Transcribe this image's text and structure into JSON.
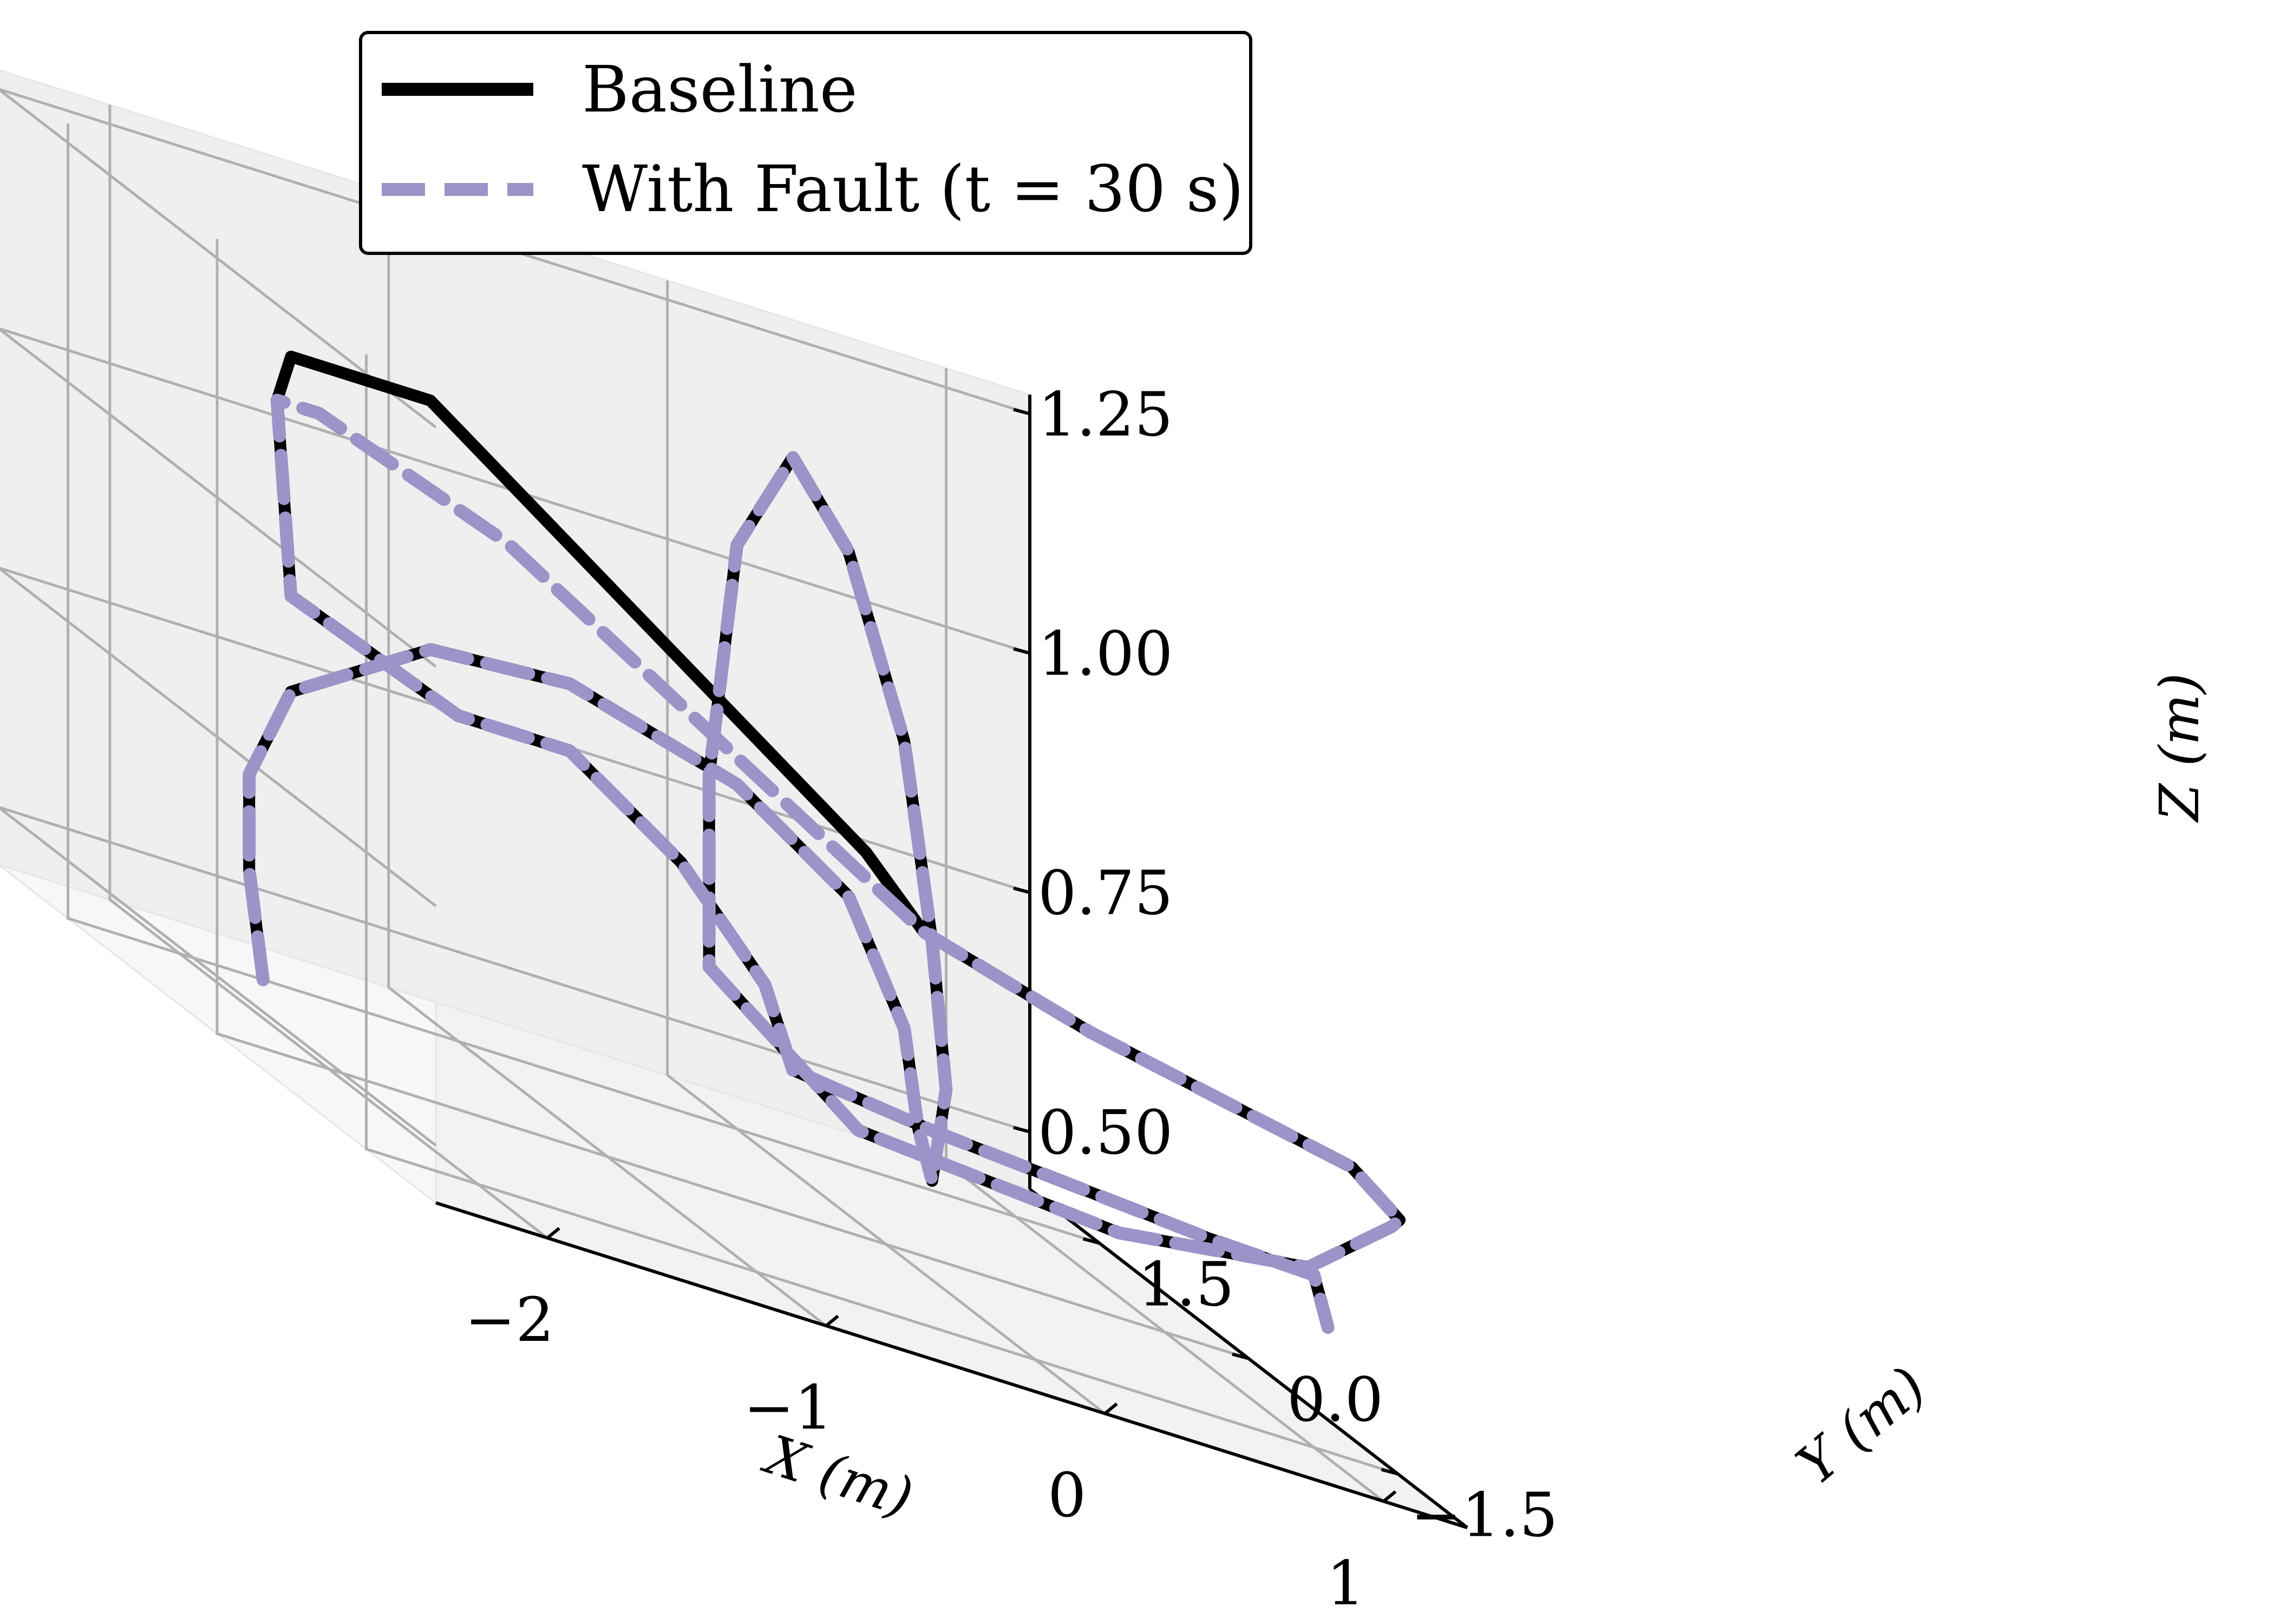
{
  "chart_data": {
    "type": "line",
    "projection": "3d",
    "xlabel": "X (m)",
    "ylabel": "Y (m)",
    "zlabel": "Z (m)",
    "xlim": [
      -2.4,
      1.3
    ],
    "ylim": [
      -2.2,
      2.2
    ],
    "zlim": [
      0.44,
      1.27
    ],
    "xticks": [
      "−2",
      "−1",
      "0",
      "1"
    ],
    "yticks": [
      "−1.5",
      "0.0",
      "1.5"
    ],
    "zticks": [
      "0.50",
      "0.75",
      "1.00",
      "1.25"
    ],
    "grid": true,
    "legend_position": "upper-left",
    "series": [
      {
        "name": "Baseline",
        "color": "#000000",
        "style": "solid",
        "points": [
          [
            -1.7,
            1.5,
            0.44
          ],
          [
            -1.75,
            1.5,
            0.55
          ],
          [
            -1.75,
            1.5,
            0.65
          ],
          [
            -1.6,
            1.5,
            0.75
          ],
          [
            -1.1,
            1.5,
            0.84
          ],
          [
            -0.6,
            1.5,
            0.85
          ],
          [
            0.0,
            1.5,
            0.8
          ],
          [
            0.4,
            1.5,
            0.72
          ],
          [
            0.6,
            1.5,
            0.6
          ],
          [
            0.65,
            1.5,
            0.5
          ],
          [
            0.7,
            1.5,
            0.45
          ],
          [
            0.75,
            1.5,
            0.55
          ],
          [
            0.7,
            1.5,
            0.7
          ],
          [
            0.6,
            1.5,
            0.9
          ],
          [
            0.4,
            1.5,
            1.08
          ],
          [
            0.2,
            1.5,
            1.16
          ],
          [
            0.0,
            1.5,
            1.05
          ],
          [
            -0.1,
            1.5,
            0.8
          ],
          [
            -0.1,
            1.5,
            0.6
          ],
          [
            -0.1,
            0.0,
            0.55
          ],
          [
            0.3,
            -1.5,
            0.6
          ],
          [
            0.8,
            -2.0,
            0.65
          ],
          [
            1.1,
            -2.0,
            0.72
          ],
          [
            1.2,
            -1.8,
            0.72
          ],
          [
            1.1,
            -1.6,
            0.75
          ],
          [
            0.2,
            -1.5,
            0.8
          ],
          [
            -0.4,
            -1.5,
            0.85
          ],
          [
            -0.5,
            -1.2,
            0.9
          ],
          [
            -1.1,
            1.5,
            1.1
          ],
          [
            -1.2,
            1.5,
            1.1
          ],
          [
            -1.6,
            1.5,
            1.1
          ],
          [
            -1.65,
            1.5,
            1.05
          ],
          [
            -1.6,
            1.5,
            0.85
          ],
          [
            -1.0,
            1.5,
            0.78
          ],
          [
            -0.6,
            1.5,
            0.78
          ],
          [
            -0.2,
            1.5,
            0.7
          ],
          [
            0.1,
            1.5,
            0.6
          ],
          [
            0.2,
            1.5,
            0.52
          ],
          [
            0.35,
            0.5,
            0.55
          ],
          [
            0.8,
            -1.0,
            0.6
          ],
          [
            1.0,
            -1.5,
            0.62
          ],
          [
            1.05,
            -1.5,
            0.57
          ]
        ]
      },
      {
        "name": "With Fault (t = 30 s)",
        "color": "#9b94c8",
        "style": "dashed",
        "points": [
          [
            -1.7,
            1.5,
            0.44
          ],
          [
            -1.75,
            1.5,
            0.55
          ],
          [
            -1.75,
            1.5,
            0.65
          ],
          [
            -1.6,
            1.5,
            0.75
          ],
          [
            -1.1,
            1.5,
            0.84
          ],
          [
            -0.6,
            1.5,
            0.85
          ],
          [
            0.0,
            1.5,
            0.8
          ],
          [
            0.4,
            1.5,
            0.72
          ],
          [
            0.6,
            1.5,
            0.6
          ],
          [
            0.65,
            1.5,
            0.5
          ],
          [
            0.7,
            1.5,
            0.45
          ],
          [
            0.75,
            1.5,
            0.55
          ],
          [
            0.7,
            1.5,
            0.7
          ],
          [
            0.6,
            1.5,
            0.9
          ],
          [
            0.4,
            1.5,
            1.08
          ],
          [
            0.2,
            1.5,
            1.16
          ],
          [
            0.0,
            1.5,
            1.05
          ],
          [
            -0.1,
            1.5,
            0.8
          ],
          [
            -0.1,
            1.5,
            0.6
          ],
          [
            -0.1,
            0.0,
            0.55
          ],
          [
            0.3,
            -1.5,
            0.6
          ],
          [
            0.8,
            -2.0,
            0.65
          ],
          [
            1.1,
            -2.0,
            0.72
          ],
          [
            1.2,
            -1.8,
            0.72
          ],
          [
            1.1,
            -1.6,
            0.75
          ],
          [
            0.2,
            -1.5,
            0.8
          ],
          [
            -0.4,
            -1.5,
            0.85
          ],
          [
            -1.0,
            1.0,
            1.0
          ],
          [
            -1.5,
            1.5,
            1.05
          ],
          [
            -1.6,
            1.5,
            1.05
          ],
          [
            -1.65,
            1.5,
            1.05
          ],
          [
            -1.6,
            1.5,
            0.85
          ],
          [
            -1.0,
            1.5,
            0.78
          ],
          [
            -0.6,
            1.5,
            0.78
          ],
          [
            -0.2,
            1.5,
            0.7
          ],
          [
            0.1,
            1.5,
            0.6
          ],
          [
            0.2,
            1.5,
            0.52
          ],
          [
            0.35,
            0.5,
            0.55
          ],
          [
            0.8,
            -1.0,
            0.6
          ],
          [
            1.0,
            -1.5,
            0.62
          ],
          [
            1.05,
            -1.5,
            0.57
          ]
        ]
      }
    ]
  },
  "legend": {
    "items": [
      {
        "label": "Baseline"
      },
      {
        "label": "With Fault (t = 30 s)"
      }
    ]
  }
}
